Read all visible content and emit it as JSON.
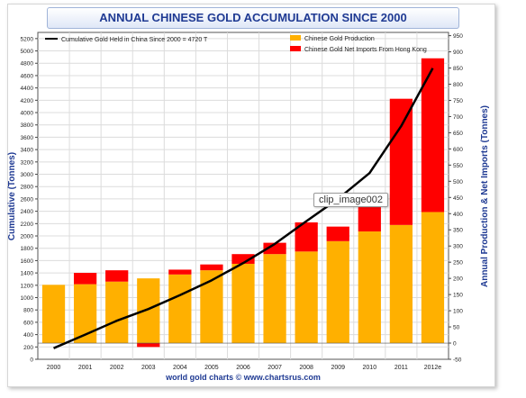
{
  "chart_data": {
    "type": "bar",
    "title": "ANNUAL CHINESE GOLD ACCUMULATION SINCE 2000",
    "left_ylabel": "Cumulative (Tonnes)",
    "right_ylabel": "Annual Production & Net Imports (Tonnes)",
    "xlabel": "",
    "source": "world gold charts © www.chartsrus.com",
    "categories": [
      "2000",
      "2001",
      "2002",
      "2003",
      "2004",
      "2005",
      "2006",
      "2007",
      "2008",
      "2009",
      "2010",
      "2011",
      "2012e"
    ],
    "left_axis": {
      "min": 0,
      "max": 5300,
      "ticks": [
        0,
        200,
        400,
        600,
        800,
        1000,
        1200,
        1400,
        1600,
        1800,
        2000,
        2200,
        2400,
        2600,
        2800,
        3000,
        3200,
        3400,
        3600,
        3800,
        4000,
        4200,
        4400,
        4600,
        4800,
        5000,
        5200
      ]
    },
    "right_axis": {
      "min": -50,
      "max": 960,
      "ticks": [
        -50,
        0,
        50,
        100,
        150,
        200,
        250,
        300,
        350,
        400,
        450,
        500,
        550,
        600,
        650,
        700,
        750,
        800,
        850,
        900,
        950
      ]
    },
    "series": [
      {
        "name": "Chinese Gold Production",
        "axis": "right",
        "color": "#ffb000",
        "values": [
          180,
          182,
          190,
          200,
          212,
          225,
          245,
          275,
          283,
          315,
          345,
          365,
          405
        ]
      },
      {
        "name": "Chinese Gold Net Imports From Hong Kong",
        "axis": "right",
        "color": "#ff0000",
        "values": [
          0,
          35,
          35,
          -12,
          15,
          18,
          30,
          35,
          90,
          45,
          75,
          390,
          475
        ]
      },
      {
        "name": "Cumulative Gold Held in China Since 2000  = 4720 T",
        "axis": "left",
        "type": "line",
        "color": "#000000",
        "values": [
          180,
          400,
          625,
          815,
          1040,
          1280,
          1560,
          1870,
          2240,
          2600,
          3020,
          3780,
          4720
        ]
      }
    ],
    "grid": true,
    "legend_placement": "top"
  },
  "overlay_tag": "clip_image002",
  "colors": {
    "title_text": "#1f3a93",
    "axis_label": "#1f3a93",
    "grid": "#dcdcdc"
  }
}
